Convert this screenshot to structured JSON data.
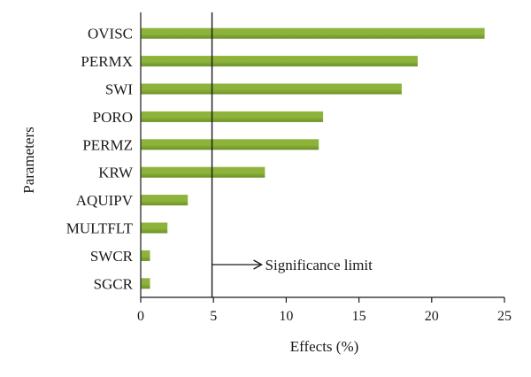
{
  "chart_data": {
    "type": "bar",
    "orientation": "horizontal",
    "categories": [
      "OVISC",
      "PERMX",
      "SWI",
      "PORO",
      "PERMZ",
      "KRW",
      "AQUIPV",
      "MULTFLT",
      "SWCR",
      "SGCR"
    ],
    "values": [
      23.6,
      19.0,
      17.9,
      12.5,
      12.2,
      8.5,
      3.2,
      1.8,
      0.6,
      0.6
    ],
    "xlabel": "Effects (%)",
    "ylabel": "Parameters",
    "xlim": [
      0,
      25
    ],
    "xticks": [
      0,
      5,
      10,
      15,
      20,
      25
    ],
    "grid": false,
    "bar_color": "#8db33a",
    "bar_color_dark": "#6a9126",
    "reference_line": {
      "x": 4.9,
      "label": "Significance limit"
    }
  }
}
